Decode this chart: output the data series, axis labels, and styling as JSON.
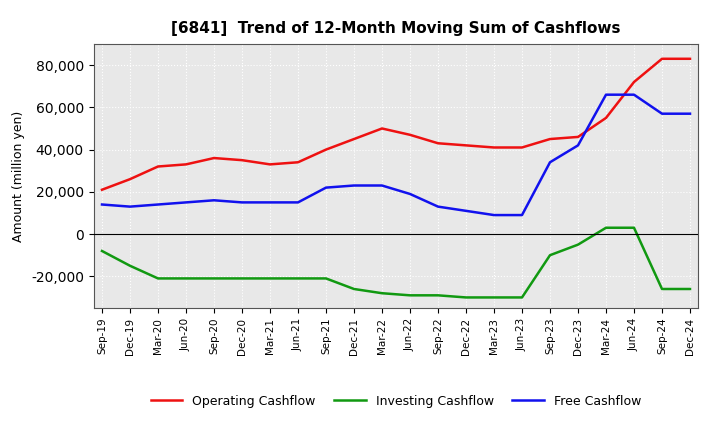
{
  "title": "[6841]  Trend of 12-Month Moving Sum of Cashflows",
  "ylabel": "Amount (million yen)",
  "x_labels": [
    "Sep-19",
    "Dec-19",
    "Mar-20",
    "Jun-20",
    "Sep-20",
    "Dec-20",
    "Mar-21",
    "Jun-21",
    "Sep-21",
    "Dec-21",
    "Mar-22",
    "Jun-22",
    "Sep-22",
    "Dec-22",
    "Mar-23",
    "Jun-23",
    "Sep-23",
    "Dec-23",
    "Mar-24",
    "Jun-24",
    "Sep-24",
    "Dec-24"
  ],
  "operating_cashflow": [
    21000,
    26000,
    32000,
    33000,
    36000,
    35000,
    33000,
    34000,
    40000,
    45000,
    50000,
    47000,
    43000,
    42000,
    41000,
    41000,
    45000,
    46000,
    55000,
    72000,
    83000,
    83000
  ],
  "investing_cashflow": [
    -8000,
    -15000,
    -21000,
    -21000,
    -21000,
    -21000,
    -21000,
    -21000,
    -21000,
    -26000,
    -28000,
    -29000,
    -29000,
    -30000,
    -30000,
    -30000,
    -10000,
    -5000,
    3000,
    3000,
    -26000,
    -26000
  ],
  "free_cashflow": [
    14000,
    13000,
    14000,
    15000,
    16000,
    15000,
    15000,
    15000,
    22000,
    23000,
    23000,
    19000,
    13000,
    11000,
    9000,
    9000,
    34000,
    42000,
    66000,
    66000,
    57000,
    57000
  ],
  "operating_color": "#EE1111",
  "investing_color": "#119911",
  "free_color": "#1111EE",
  "background_color": "#FFFFFF",
  "plot_bg_color": "#F0F0F0",
  "grid_color": "#999999",
  "ylim": [
    -35000,
    90000
  ],
  "yticks": [
    -20000,
    0,
    20000,
    40000,
    60000,
    80000
  ]
}
